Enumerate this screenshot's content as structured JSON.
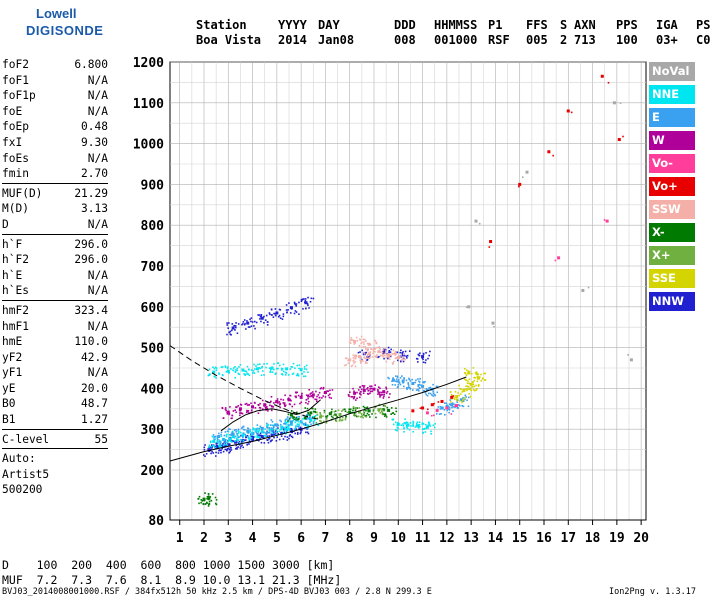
{
  "logo": {
    "line1": "Lowell",
    "line2": "DIGISONDE"
  },
  "header": {
    "labels": [
      "Station",
      "YYYY",
      "DAY",
      "DDD",
      "HHMMSS",
      "P1",
      "FFS",
      "S",
      "AXN",
      "PPS",
      "IGA",
      "PS"
    ],
    "values": [
      "Boa Vista",
      "2014",
      "Jan08",
      "008",
      "001000",
      "RSF",
      "005",
      "2",
      "713",
      "100",
      "03+",
      "C0"
    ]
  },
  "params": [
    {
      "label": "foF2",
      "value": "6.800"
    },
    {
      "label": "foF1",
      "value": "N/A"
    },
    {
      "label": "foF1p",
      "value": "N/A"
    },
    {
      "label": "foE",
      "value": "N/A"
    },
    {
      "label": "foEp",
      "value": "0.48"
    },
    {
      "label": "fxI",
      "value": "9.30"
    },
    {
      "label": "foEs",
      "value": "N/A"
    },
    {
      "label": "fmin",
      "value": "2.70"
    },
    {
      "sep": true
    },
    {
      "label": "MUF(D)",
      "value": "21.29"
    },
    {
      "label": "M(D)",
      "value": "3.13"
    },
    {
      "label": "D",
      "value": "N/A"
    },
    {
      "sep": true
    },
    {
      "label": "h`F",
      "value": "296.0"
    },
    {
      "label": "h`F2",
      "value": "296.0"
    },
    {
      "label": "h`E",
      "value": "N/A"
    },
    {
      "label": "h`Es",
      "value": "N/A"
    },
    {
      "sep": true
    },
    {
      "label": "hmF2",
      "value": "323.4"
    },
    {
      "label": "hmF1",
      "value": "N/A"
    },
    {
      "label": "hmE",
      "value": "110.0"
    },
    {
      "label": "yF2",
      "value": "42.9"
    },
    {
      "label": "yF1",
      "value": "N/A"
    },
    {
      "label": "yE",
      "value": "20.0"
    },
    {
      "label": "B0",
      "value": "48.7"
    },
    {
      "label": "B1",
      "value": "1.27"
    },
    {
      "sep": true
    },
    {
      "label": "C-level",
      "value": "55"
    },
    {
      "sep": true
    },
    {
      "label": "Auto:",
      "value": ""
    },
    {
      "label": "Artist5",
      "value": ""
    },
    {
      "label": "500200",
      "value": ""
    }
  ],
  "legend": [
    {
      "label": "NoVal",
      "color": "#a8a8a8"
    },
    {
      "label": "NNE",
      "color": "#00e6f0"
    },
    {
      "label": "E",
      "color": "#3aa0f0"
    },
    {
      "label": "W",
      "color": "#b0009a"
    },
    {
      "label": "Vo-",
      "color": "#ff3e9c"
    },
    {
      "label": "Vo+",
      "color": "#e80000"
    },
    {
      "label": "SSW",
      "color": "#f4b0a8"
    },
    {
      "label": "X-",
      "color": "#007a00"
    },
    {
      "label": "X+",
      "color": "#70b040"
    },
    {
      "label": "SSE",
      "color": "#d4d400"
    },
    {
      "label": "NNW",
      "color": "#2020d0"
    }
  ],
  "chart_data": {
    "type": "scatter",
    "xlim": [
      0.6,
      20.2
    ],
    "ylim": [
      80,
      1200
    ],
    "x_ticks": [
      1,
      2,
      3,
      4,
      5,
      6,
      7,
      8,
      9,
      10,
      11,
      12,
      13,
      14,
      15,
      16,
      17,
      18,
      19,
      20
    ],
    "y_ticks": [
      80,
      200,
      300,
      400,
      500,
      600,
      700,
      800,
      900,
      1000,
      1100,
      1200
    ],
    "grid": true,
    "series": [
      {
        "name": "NNW",
        "color": "#2020d0",
        "x": [
          2.2,
          2.5,
          2.8,
          3.0,
          3.3,
          3.6,
          4.0,
          4.4,
          4.8,
          5.2,
          5.6,
          6.0,
          3.2,
          3.8,
          4.4,
          5.0,
          5.6,
          6.2,
          8.6,
          9.4,
          10.2,
          11.0
        ],
        "y": [
          250,
          255,
          258,
          262,
          268,
          272,
          276,
          282,
          286,
          290,
          295,
          300,
          548,
          560,
          572,
          585,
          598,
          610,
          485,
          488,
          482,
          478
        ]
      },
      {
        "name": "NNE",
        "color": "#00e6f0",
        "x": [
          2.4,
          2.8,
          3.2,
          3.6,
          4.0,
          4.4,
          4.8,
          5.2,
          5.6,
          6.0,
          6.4,
          10.0,
          10.4,
          10.8,
          11.2,
          2.4,
          3.0,
          3.6,
          4.2,
          4.8,
          5.4,
          6.0
        ],
        "y": [
          270,
          275,
          282,
          285,
          290,
          294,
          300,
          305,
          312,
          318,
          322,
          312,
          310,
          308,
          305,
          440,
          442,
          445,
          448,
          450,
          448,
          446
        ]
      },
      {
        "name": "E",
        "color": "#3aa0f0",
        "x": [
          2.6,
          3.2,
          3.8,
          4.4,
          5.0,
          5.6,
          6.2,
          9.8,
          10.2,
          10.6,
          11.0,
          11.4,
          11.8,
          12.2,
          12.6
        ],
        "y": [
          282,
          288,
          295,
          302,
          310,
          318,
          326,
          420,
          418,
          412,
          405,
          398,
          352,
          360,
          372
        ]
      },
      {
        "name": "W",
        "color": "#b0009a",
        "x": [
          3.0,
          3.5,
          4.0,
          4.5,
          5.0,
          5.5,
          6.0,
          6.5,
          7.0,
          8.2,
          8.6,
          9.0,
          9.4
        ],
        "y": [
          342,
          350,
          355,
          360,
          368,
          372,
          378,
          384,
          390,
          388,
          395,
          398,
          392
        ]
      },
      {
        "name": "SSW",
        "color": "#f4b0a8",
        "x": [
          8.0,
          8.4,
          8.8,
          9.2,
          9.6,
          10.0,
          8.2,
          8.8
        ],
        "y": [
          470,
          478,
          485,
          490,
          482,
          476,
          515,
          508
        ]
      },
      {
        "name": "X-",
        "color": "#007a00",
        "x": [
          5.6,
          6.4,
          7.2,
          8.0,
          8.8,
          9.6,
          2.0,
          2.2
        ],
        "y": [
          335,
          340,
          338,
          342,
          345,
          346,
          130,
          132
        ]
      },
      {
        "name": "X+",
        "color": "#70b040",
        "x": [
          6.8,
          7.6,
          8.4,
          9.2
        ],
        "y": [
          330,
          336,
          342,
          348
        ]
      },
      {
        "name": "SSE",
        "color": "#d4d400",
        "x": [
          12.4,
          12.7,
          13.0,
          13.3,
          12.9
        ],
        "y": [
          380,
          395,
          410,
          425,
          438
        ]
      },
      {
        "name": "Vo+",
        "color": "#e80000",
        "x": [
          10.6,
          11.0,
          11.4,
          11.8,
          12.2,
          13.8,
          15.0,
          16.2,
          17.0,
          18.4,
          19.1
        ],
        "y": [
          345,
          352,
          360,
          368,
          378,
          760,
          900,
          980,
          1080,
          1165,
          1010
        ]
      },
      {
        "name": "Vo-",
        "color": "#ff3e9c",
        "x": [
          11.2,
          11.6,
          12.0,
          12.4,
          16.6,
          18.6
        ],
        "y": [
          340,
          346,
          352,
          358,
          720,
          810
        ]
      },
      {
        "name": "NoVal",
        "color": "#a8a8a8",
        "x": [
          12.9,
          13.2,
          13.9,
          15.3,
          17.6,
          18.9,
          19.6
        ],
        "y": [
          600,
          810,
          560,
          930,
          640,
          1100,
          470
        ]
      }
    ]
  },
  "d_table": {
    "row1": "D    100  200  400  600  800 1000 1500 3000 [km]",
    "row2": "MUF  7.2  7.3  7.6  8.1  8.9 10.0 13.1 21.3 [MHz]"
  },
  "footer": {
    "left": "BVJ03_2014008001000.RSF / 384fx512h 50 kHz 2.5 km / DPS-4D BVJ03 003 / 2.8 N 299.3 E",
    "right": "Ion2Png v. 1.3.17"
  }
}
